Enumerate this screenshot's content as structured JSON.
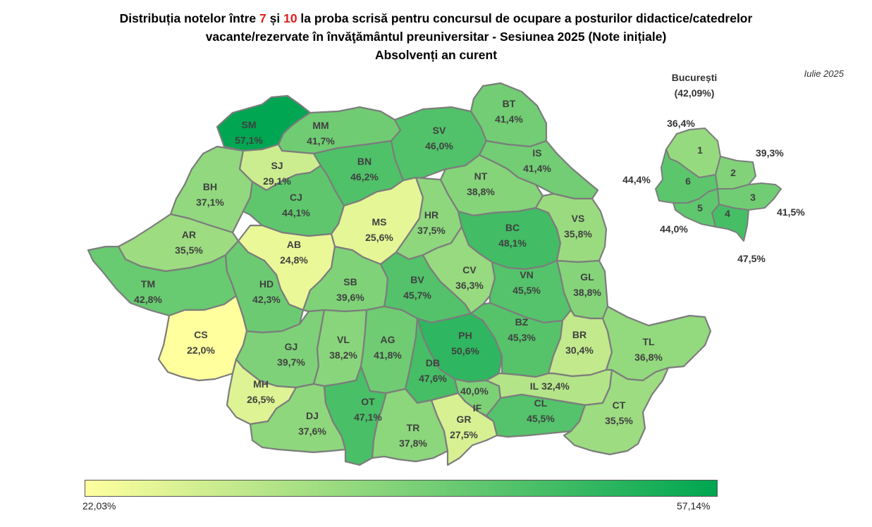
{
  "title": {
    "line1_a": "Distribuția notelor între ",
    "line1_n1": "7",
    "line1_b": " și ",
    "line1_n2": "10",
    "line1_c": " la proba scrisă pentru concursul de ocupare a posturilor didactice/catedrelor",
    "line2": "vacante/rezervate în învăţământul preuniversitar - Sesiunea 2025 (Note inițiale)",
    "line3": "Absolvenți an curent"
  },
  "date": "Iulie 2025",
  "legend": {
    "min": "22,03%",
    "max": "57,14%",
    "min_value": 22.03,
    "max_value": 57.14,
    "color_low": "#ffff9e",
    "color_high": "#00a651"
  },
  "counties": [
    {
      "code": "SM",
      "value": 57.1,
      "label": "57,1%"
    },
    {
      "code": "MM",
      "value": 41.7,
      "label": "41,7%"
    },
    {
      "code": "SV",
      "value": 46.0,
      "label": "46,0%"
    },
    {
      "code": "BT",
      "value": 41.4,
      "label": "41,4%"
    },
    {
      "code": "BH",
      "value": 37.1,
      "label": "37,1%"
    },
    {
      "code": "SJ",
      "value": 29.1,
      "label": "29,1%"
    },
    {
      "code": "BN",
      "value": 46.2,
      "label": "46,2%"
    },
    {
      "code": "IS",
      "value": 41.4,
      "label": "41,4%"
    },
    {
      "code": "NT",
      "value": 38.8,
      "label": "38,8%"
    },
    {
      "code": "CJ",
      "value": 44.1,
      "label": "44,1%"
    },
    {
      "code": "AR",
      "value": 35.5,
      "label": "35,5%"
    },
    {
      "code": "MS",
      "value": 25.6,
      "label": "25,6%"
    },
    {
      "code": "HR",
      "value": 37.5,
      "label": "37,5%"
    },
    {
      "code": "BC",
      "value": 48.1,
      "label": "48,1%"
    },
    {
      "code": "VS",
      "value": 35.8,
      "label": "35,8%"
    },
    {
      "code": "AB",
      "value": 24.8,
      "label": "24,8%"
    },
    {
      "code": "TM",
      "value": 42.8,
      "label": "42,8%"
    },
    {
      "code": "HD",
      "value": 42.3,
      "label": "42,3%"
    },
    {
      "code": "SB",
      "value": 39.6,
      "label": "39,6%"
    },
    {
      "code": "BV",
      "value": 45.7,
      "label": "45,7%"
    },
    {
      "code": "CV",
      "value": 36.3,
      "label": "36,3%"
    },
    {
      "code": "VN",
      "value": 45.5,
      "label": "45,5%"
    },
    {
      "code": "GL",
      "value": 38.8,
      "label": "38,8%"
    },
    {
      "code": "CS",
      "value": 22.0,
      "label": "22,0%"
    },
    {
      "code": "GJ",
      "value": 39.7,
      "label": "39,7%"
    },
    {
      "code": "VL",
      "value": 38.2,
      "label": "38,2%"
    },
    {
      "code": "AG",
      "value": 41.8,
      "label": "41,8%"
    },
    {
      "code": "PH",
      "value": 50.6,
      "label": "50,6%"
    },
    {
      "code": "BZ",
      "value": 45.3,
      "label": "45,3%"
    },
    {
      "code": "BR",
      "value": 30.4,
      "label": "30,4%"
    },
    {
      "code": "TL",
      "value": 36.8,
      "label": "36,8%"
    },
    {
      "code": "DB",
      "value": 47.6,
      "label": "47,6%"
    },
    {
      "code": "MH",
      "value": 26.5,
      "label": "26,5%"
    },
    {
      "code": "DJ",
      "value": 37.6,
      "label": "37,6%"
    },
    {
      "code": "OT",
      "value": 47.1,
      "label": "47,1%"
    },
    {
      "code": "TR",
      "value": 37.8,
      "label": "37,8%"
    },
    {
      "code": "GR",
      "value": 27.5,
      "label": "27,5%"
    },
    {
      "code": "IF",
      "value": 40.0,
      "label": "40,0%"
    },
    {
      "code": "IL",
      "value": 32.4,
      "label": "32,4%"
    },
    {
      "code": "CL",
      "value": 45.5,
      "label": "45,5%"
    },
    {
      "code": "CT",
      "value": 35.5,
      "label": "35,5%"
    }
  ],
  "bucharest": {
    "name": "București",
    "total": "(42,09%)",
    "sectors": [
      {
        "code": "1",
        "value": 36.4,
        "label": "36,4%"
      },
      {
        "code": "2",
        "value": 39.3,
        "label": "39,3%"
      },
      {
        "code": "3",
        "value": 41.5,
        "label": "41,5%"
      },
      {
        "code": "4",
        "value": 47.5,
        "label": "47,5%"
      },
      {
        "code": "5",
        "value": 44.0,
        "label": "44,0%"
      },
      {
        "code": "6",
        "value": 44.4,
        "label": "44,4%"
      }
    ]
  }
}
